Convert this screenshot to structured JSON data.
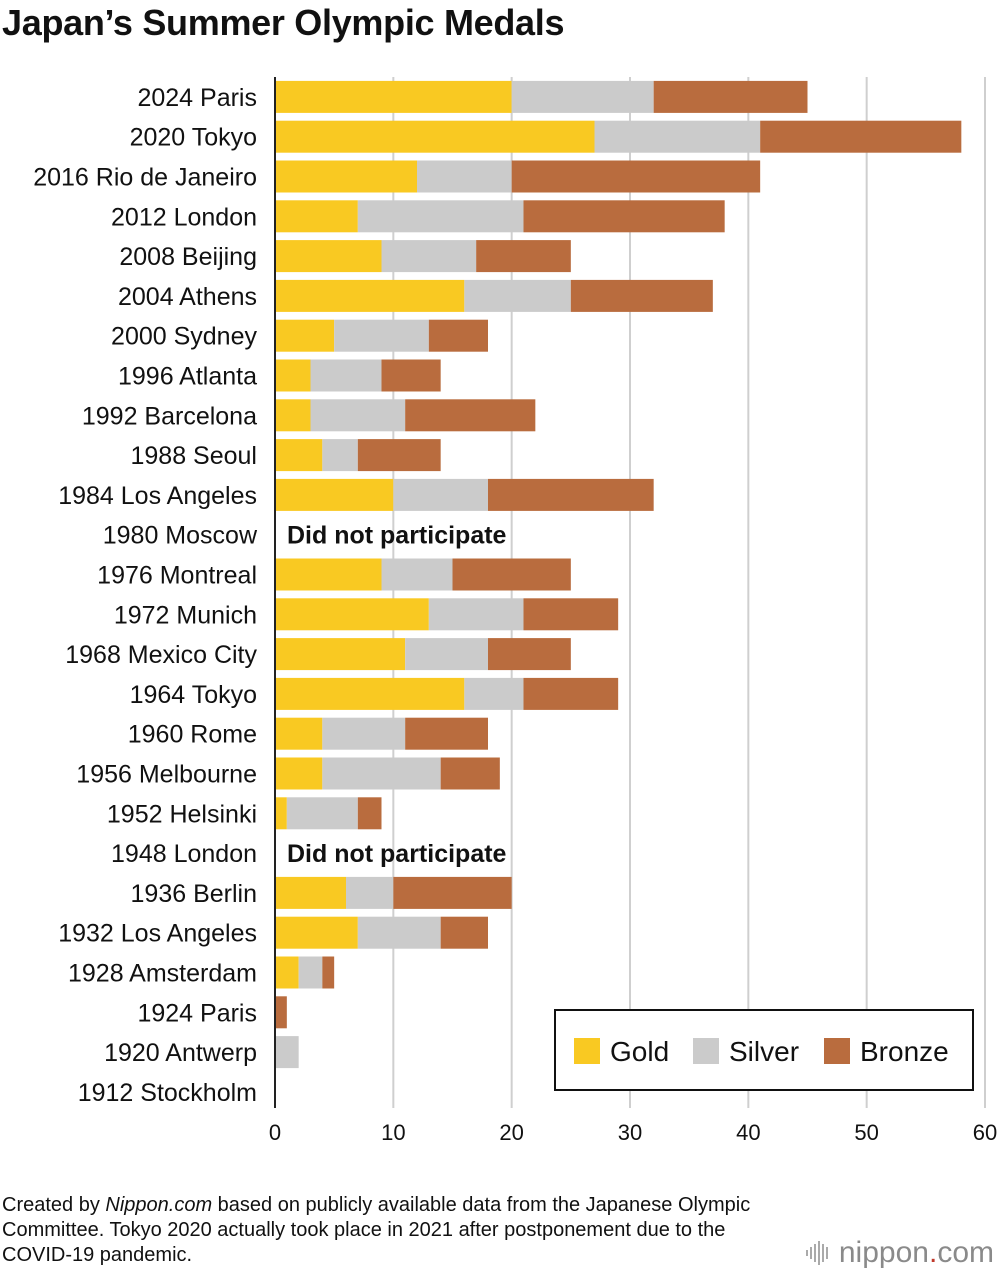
{
  "chart_data": {
    "type": "bar",
    "orientation": "horizontal",
    "stacked": true,
    "title": "Japan’s Summer Olympic Medals",
    "xlabel": "",
    "ylabel": "",
    "xlim": [
      0,
      60
    ],
    "x_ticks": [
      0,
      10,
      20,
      30,
      40,
      50,
      60
    ],
    "grid": true,
    "legend_position": "bottom-right",
    "categories": [
      "2024 Paris",
      "2020 Tokyo",
      "2016 Rio de Janeiro",
      "2012 London",
      "2008 Beijing",
      "2004 Athens",
      "2000 Sydney",
      "1996 Atlanta",
      "1992 Barcelona",
      "1988 Seoul",
      "1984 Los Angeles",
      "1980 Moscow",
      "1976 Montreal",
      "1972 Munich",
      "1968 Mexico City",
      "1964 Tokyo",
      "1960 Rome",
      "1956 Melbourne",
      "1952 Helsinki",
      "1948 London",
      "1936 Berlin",
      "1932 Los Angeles",
      "1928 Amsterdam",
      "1924 Paris",
      "1920 Antwerp",
      "1912 Stockholm"
    ],
    "series": [
      {
        "name": "Gold",
        "color": "#F9C922",
        "values": [
          20,
          27,
          12,
          7,
          9,
          16,
          5,
          3,
          3,
          4,
          10,
          null,
          9,
          13,
          11,
          16,
          4,
          4,
          1,
          null,
          6,
          7,
          2,
          0,
          0,
          0
        ]
      },
      {
        "name": "Silver",
        "color": "#CBCBCB",
        "values": [
          12,
          14,
          8,
          14,
          8,
          9,
          8,
          6,
          8,
          3,
          8,
          null,
          6,
          8,
          7,
          5,
          7,
          10,
          6,
          null,
          4,
          7,
          2,
          0,
          2,
          0
        ]
      },
      {
        "name": "Bronze",
        "color": "#B96C3E",
        "values": [
          13,
          17,
          21,
          17,
          8,
          12,
          5,
          5,
          11,
          7,
          14,
          null,
          10,
          8,
          7,
          8,
          7,
          5,
          2,
          null,
          10,
          4,
          1,
          1,
          0,
          0
        ]
      }
    ],
    "annotations": [
      {
        "category": "1980 Moscow",
        "text": "Did not participate"
      },
      {
        "category": "1948 London",
        "text": "Did not participate"
      }
    ]
  },
  "footnote": {
    "prefix": "Created by ",
    "source": "Nippon.com",
    "suffix": " based on publicly available data from the Japanese Olympic Committee. Tokyo 2020 actually took place in 2021 after postponement due to the COVID-19 pandemic."
  },
  "brand": {
    "name": "nippon",
    "dot": ".",
    "tld": "com"
  }
}
